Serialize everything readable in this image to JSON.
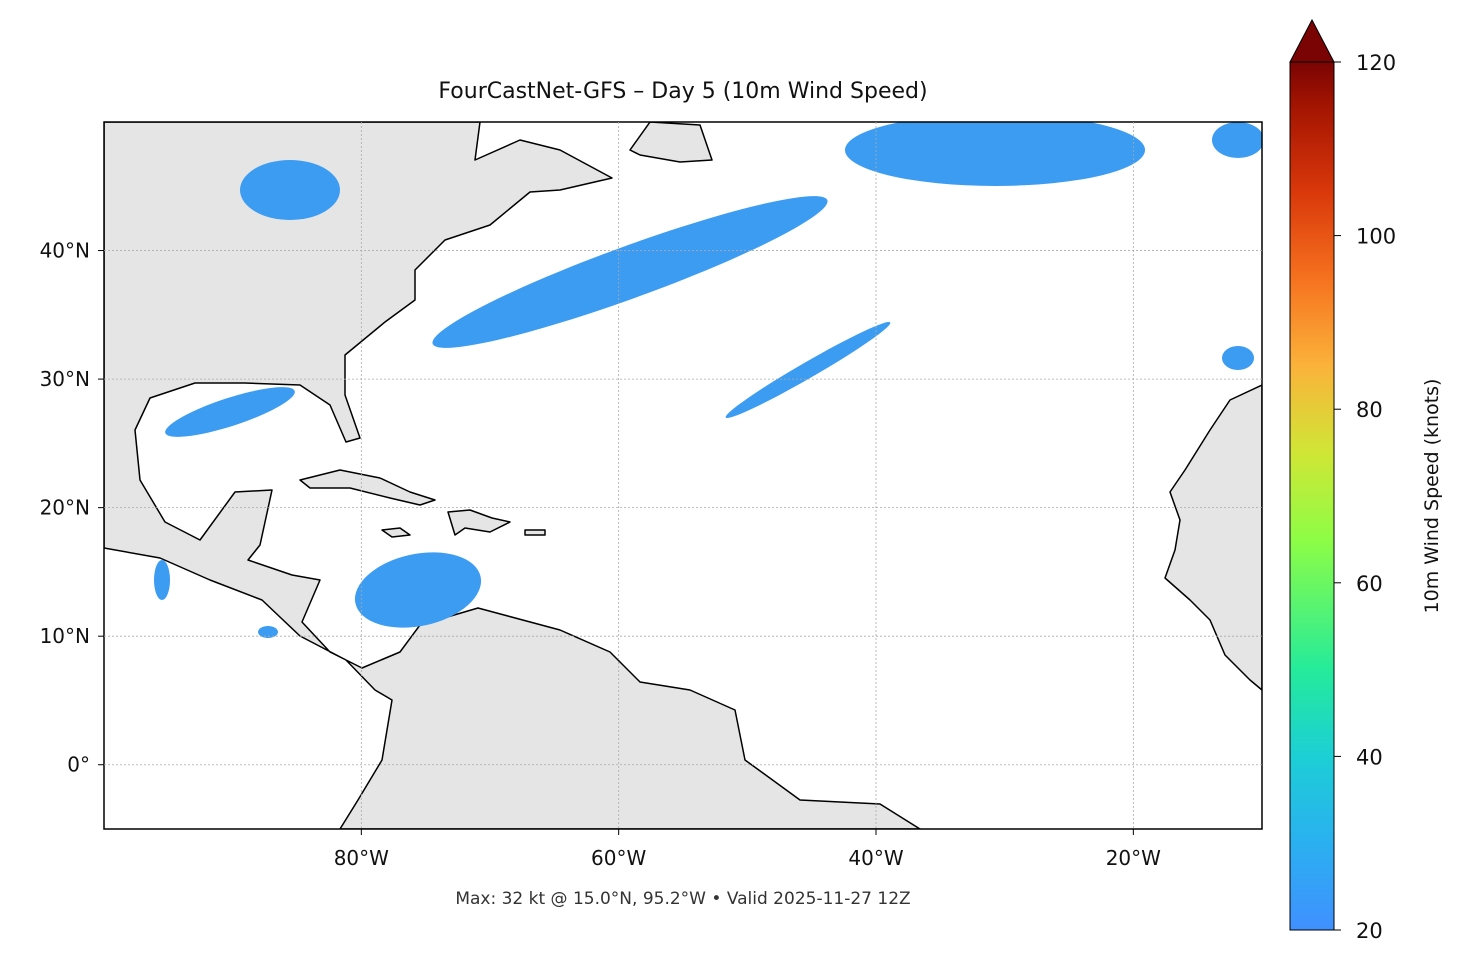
{
  "title": "FourCastNet-GFS – Day 5 (10m Wind Speed)",
  "map": {
    "lon_range": [
      -100,
      -10
    ],
    "lat_range": [
      -5,
      50
    ],
    "x_ticks": [
      {
        "value": -80,
        "label": "80°W"
      },
      {
        "value": -60,
        "label": "60°W"
      },
      {
        "value": -40,
        "label": "40°W"
      },
      {
        "value": -20,
        "label": "20°W"
      }
    ],
    "y_ticks": [
      {
        "value": 0,
        "label": "0°"
      },
      {
        "value": 10,
        "label": "10°N"
      },
      {
        "value": 20,
        "label": "20°N"
      },
      {
        "value": 30,
        "label": "30°N"
      },
      {
        "value": 40,
        "label": "40°N"
      }
    ]
  },
  "colorbar": {
    "label": "10m Wind Speed (knots)",
    "range": [
      20,
      120
    ],
    "ticks": [
      20,
      40,
      60,
      80,
      100,
      120
    ]
  },
  "footer": "Max: 32 kt @ 15.0°N, 95.2°W • Valid 2025-11-27 12Z"
}
